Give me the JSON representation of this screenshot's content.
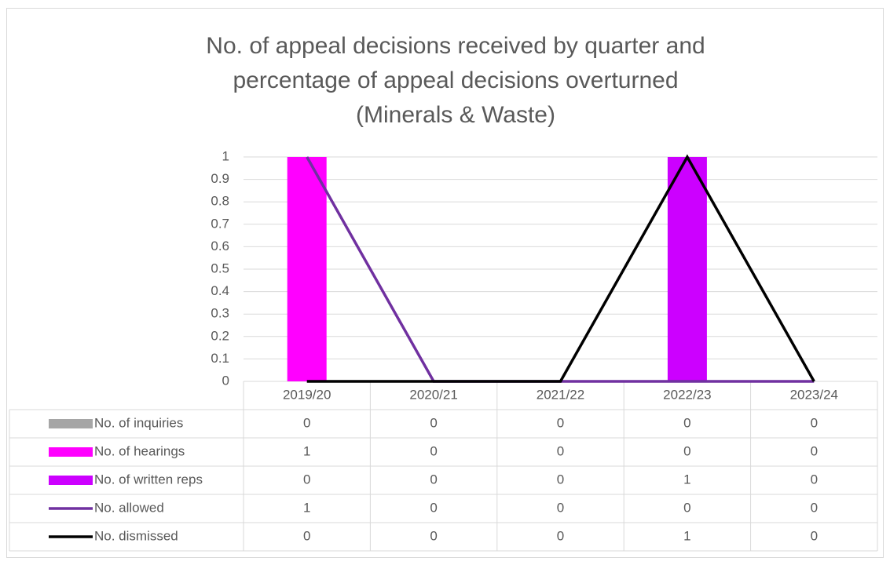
{
  "chart_data": {
    "type": "combo",
    "title": "No. of appeal decisions received by quarter and percentage of appeal decisions overturned (Minerals & Waste)",
    "categories": [
      "2019/20",
      "2020/21",
      "2021/22",
      "2022/23",
      "2023/24"
    ],
    "ylim": [
      0,
      1
    ],
    "yticks": [
      0,
      0.1,
      0.2,
      0.3,
      0.4,
      0.5,
      0.6,
      0.7,
      0.8,
      0.9,
      1
    ],
    "grid": true,
    "series": [
      {
        "name": "No. of inquiries",
        "type": "bar",
        "color": "#a6a6a6",
        "values": [
          0,
          0,
          0,
          0,
          0
        ]
      },
      {
        "name": "No. of hearings",
        "type": "bar",
        "color": "#ff00ff",
        "values": [
          1,
          0,
          0,
          0,
          0
        ]
      },
      {
        "name": "No. of written reps",
        "type": "bar",
        "color": "#cc00ff",
        "values": [
          0,
          0,
          0,
          1,
          0
        ]
      },
      {
        "name": "No. allowed",
        "type": "line",
        "color": "#7030a0",
        "values": [
          1,
          0,
          0,
          0,
          0
        ]
      },
      {
        "name": "No. dismissed",
        "type": "line",
        "color": "#000000",
        "values": [
          0,
          0,
          0,
          1,
          0
        ]
      }
    ]
  }
}
